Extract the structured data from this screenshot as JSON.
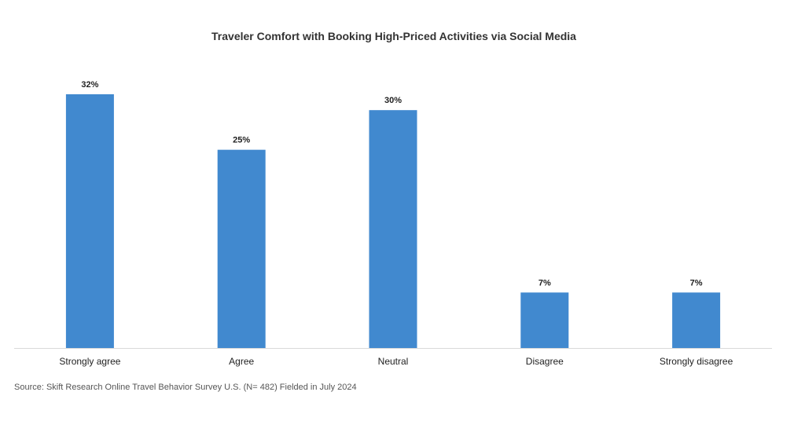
{
  "chart_data": {
    "type": "bar",
    "title": "Traveler Comfort with Booking High-Priced Activities via Social Media",
    "categories": [
      "Strongly agree",
      "Agree",
      "Neutral",
      "Disagree",
      "Strongly disagree"
    ],
    "values": [
      32,
      25,
      30,
      7,
      7
    ],
    "data_labels": [
      "32%",
      "25%",
      "30%",
      "7%",
      "7%"
    ],
    "xlabel": "",
    "ylabel": "",
    "ylim": [
      0,
      32
    ],
    "grid": false,
    "legend": "none",
    "colors": {
      "bar": "#4189cf"
    }
  },
  "footer": {
    "source": "Source: Skift Research Online Travel Behavior Survey U.S. (N= 482) Fielded in July 2024"
  }
}
